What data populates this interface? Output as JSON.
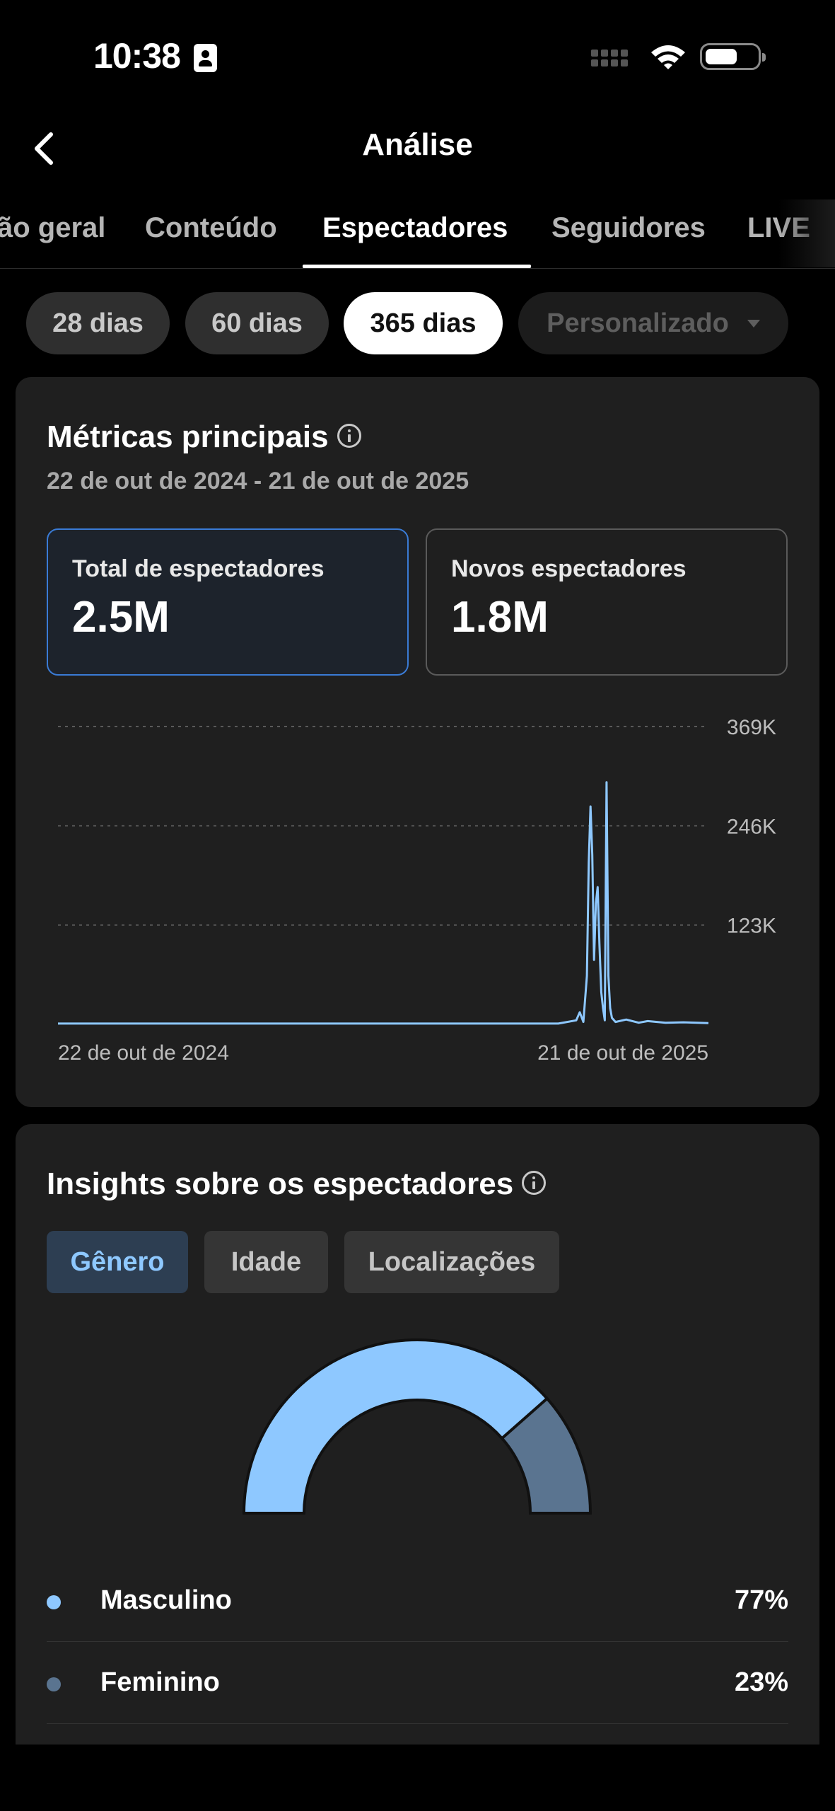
{
  "status_bar": {
    "time": "10:38"
  },
  "header": {
    "title": "Análise"
  },
  "tabs": [
    {
      "label": "Visão geral",
      "visible_label": "ão geral"
    },
    {
      "label": "Conteúdo"
    },
    {
      "label": "Espectadores",
      "active": true
    },
    {
      "label": "Seguidores"
    },
    {
      "label": "LIVE"
    }
  ],
  "date_filters": [
    "28 dias",
    "60 dias",
    "365 dias",
    "Personalizado"
  ],
  "selected_date_filter": "365 dias",
  "metrics_card": {
    "title": "Métricas principais",
    "date_range": "22 de out de 2024 - 21 de out de 2025",
    "total": {
      "label": "Total de espectadores",
      "value": "2.5M"
    },
    "new": {
      "label": "Novos espectadores",
      "value": "1.8M"
    }
  },
  "chart_data": {
    "type": "line",
    "x_start_label": "22 de out de 2024",
    "x_end_label": "21 de out de 2025",
    "ytick_labels": [
      "369K",
      "246K",
      "123K"
    ],
    "yticks": [
      369000,
      246000,
      123000
    ],
    "ylim": [
      0,
      369000
    ],
    "grid": true,
    "series": [
      {
        "color": "#8ec8ff",
        "points": [
          [
            0,
            1000
          ],
          [
            280,
            1000
          ],
          [
            290,
            5000
          ],
          [
            292,
            15000
          ],
          [
            294,
            3000
          ],
          [
            296,
            60000
          ],
          [
            297,
            200000
          ],
          [
            298,
            270000
          ],
          [
            299,
            210000
          ],
          [
            300,
            80000
          ],
          [
            301,
            150000
          ],
          [
            302,
            170000
          ],
          [
            303,
            100000
          ],
          [
            304,
            40000
          ],
          [
            305,
            20000
          ],
          [
            306,
            5000
          ],
          [
            307,
            300000
          ],
          [
            308,
            60000
          ],
          [
            309,
            20000
          ],
          [
            310,
            8000
          ],
          [
            312,
            3000
          ],
          [
            318,
            6000
          ],
          [
            325,
            2000
          ],
          [
            330,
            4000
          ],
          [
            340,
            2000
          ],
          [
            350,
            2500
          ],
          [
            364,
            1500
          ]
        ]
      }
    ]
  },
  "insights_card": {
    "title": "Insights sobre os espectadores",
    "tabs": [
      "Gênero",
      "Idade",
      "Localizações"
    ],
    "active_tab": "Gênero",
    "gender": [
      {
        "label": "Masculino",
        "value": "77%",
        "fraction": 0.77,
        "color": "#8ec8ff"
      },
      {
        "label": "Feminino",
        "value": "23%",
        "fraction": 0.23,
        "color": "#5a7490"
      }
    ]
  }
}
